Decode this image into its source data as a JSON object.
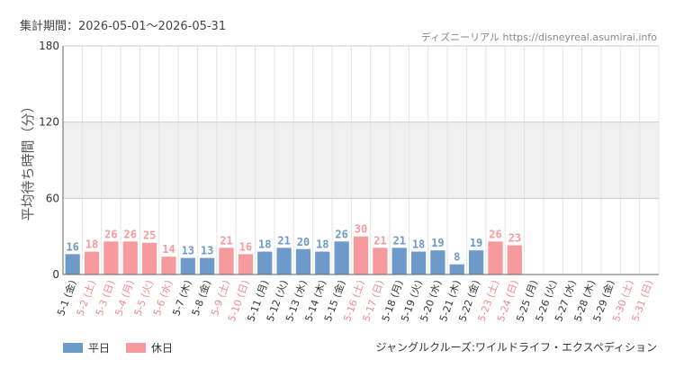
{
  "header": {
    "period": "集計期間：2026-05-01～2026-05-31",
    "source": "ディズニーリアル https://disneyreal.asumirai.info"
  },
  "legend": {
    "weekday": "平日",
    "holiday": "休日"
  },
  "attraction": "ジャングルクルーズ:ワイルドライフ・エクスペディション",
  "colors": {
    "weekday": "#6d9ac9",
    "holiday": "#f79a9e",
    "band": "#f0f0f0",
    "grid": "#e4e4e4"
  },
  "chart_data": {
    "type": "bar",
    "ylabel": "平均待ち時間（分）",
    "ylim": [
      0,
      180
    ],
    "yticks": [
      0,
      60,
      120,
      180
    ],
    "shaded_band": [
      60,
      120
    ],
    "categories": [
      "5-1 (金)",
      "5-2 (土)",
      "5-3 (日)",
      "5-4 (月)",
      "5-5 (火)",
      "5-6 (水)",
      "5-7 (木)",
      "5-8 (金)",
      "5-9 (土)",
      "5-10 (日)",
      "5-11 (月)",
      "5-12 (火)",
      "5-13 (水)",
      "5-14 (木)",
      "5-15 (金)",
      "5-16 (土)",
      "5-17 (日)",
      "5-18 (月)",
      "5-19 (火)",
      "5-20 (水)",
      "5-21 (木)",
      "5-22 (金)",
      "5-23 (土)",
      "5-24 (日)",
      "5-25 (月)",
      "5-26 (火)",
      "5-27 (水)",
      "5-28 (木)",
      "5-29 (金)",
      "5-30 (土)",
      "5-31 (日)"
    ],
    "values": [
      16,
      18,
      26,
      26,
      25,
      14,
      13,
      13,
      21,
      16,
      18,
      21,
      20,
      18,
      26,
      30,
      21,
      21,
      18,
      19,
      8,
      19,
      26,
      23,
      null,
      null,
      null,
      null,
      null,
      null,
      null
    ],
    "day_type": [
      "weekday",
      "holiday",
      "holiday",
      "holiday",
      "holiday",
      "holiday",
      "weekday",
      "weekday",
      "holiday",
      "holiday",
      "weekday",
      "weekday",
      "weekday",
      "weekday",
      "weekday",
      "holiday",
      "holiday",
      "weekday",
      "weekday",
      "weekday",
      "weekday",
      "weekday",
      "holiday",
      "holiday",
      "weekday",
      "weekday",
      "weekday",
      "weekday",
      "weekday",
      "holiday",
      "holiday"
    ]
  }
}
